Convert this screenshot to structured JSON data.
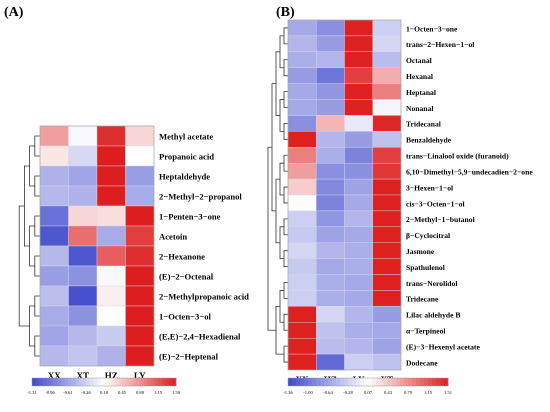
{
  "chart_data": [
    {
      "type": "heatmap",
      "panel_label": "(A)",
      "columns": [
        "XX",
        "XT",
        "HZ",
        "LY"
      ],
      "rows": [
        {
          "label": "Methyl acetate",
          "values": [
            0.7,
            0.05,
            1.4,
            0.35
          ]
        },
        {
          "label": "Propanoic acid",
          "values": [
            0.25,
            -0.2,
            1.5,
            0.1
          ]
        },
        {
          "label": "Heptaldehyde",
          "values": [
            -0.5,
            -0.6,
            1.5,
            -0.65
          ]
        },
        {
          "label": "2−Methyl−2−propanol",
          "values": [
            -0.45,
            -0.5,
            1.5,
            -0.55
          ]
        },
        {
          "label": "1−Penten−3−one",
          "values": [
            -1.0,
            0.35,
            0.3,
            1.5
          ]
        },
        {
          "label": "Acetoin",
          "values": [
            -1.2,
            1.0,
            -0.55,
            1.3
          ]
        },
        {
          "label": "2−Hexanone",
          "values": [
            -0.45,
            -1.2,
            1.1,
            1.4
          ]
        },
        {
          "label": "(E)−2−Octenal",
          "values": [
            -0.65,
            -0.75,
            0.05,
            1.5
          ]
        },
        {
          "label": "2−Methylpropanoic acid",
          "values": [
            -0.4,
            -1.25,
            0.2,
            1.5
          ]
        },
        {
          "label": "1−Octen−3−ol",
          "values": [
            -0.55,
            -0.75,
            0.1,
            1.5
          ]
        },
        {
          "label": "(E,E)−2,4−Hexadienal",
          "values": [
            -0.6,
            -0.45,
            -0.3,
            1.5
          ]
        },
        {
          "label": "(E)−2−Heptenal",
          "values": [
            -0.45,
            -0.35,
            -0.5,
            1.5
          ]
        }
      ],
      "scale": {
        "min": -1.31,
        "max": 1.5,
        "ticks": [
          "-1.31",
          "-0.96",
          "-0.61",
          "-0.26",
          "0.10",
          "0.45",
          "0.80",
          "1.15",
          "1.50"
        ]
      },
      "colors": {
        "low": "#3f48cc",
        "mid": "#ffffff",
        "high": "#dd1e1e"
      }
    },
    {
      "type": "heatmap",
      "panel_label": "(B)",
      "columns": [
        "XX",
        "HZ",
        "LY",
        "XT"
      ],
      "rows": [
        {
          "label": "1−Octen−3−one",
          "values": [
            -0.6,
            -0.8,
            1.5,
            -0.3
          ]
        },
        {
          "label": "trans−2−Hexen−1−ol",
          "values": [
            -0.5,
            -0.7,
            1.5,
            -0.25
          ]
        },
        {
          "label": "Octanal",
          "values": [
            -0.55,
            -0.5,
            1.5,
            -0.45
          ]
        },
        {
          "label": "Hexanal",
          "values": [
            -0.7,
            -1.0,
            1.3,
            0.6
          ]
        },
        {
          "label": "Heptanal",
          "values": [
            -0.6,
            -0.75,
            1.5,
            0.9
          ]
        },
        {
          "label": "Nonanal",
          "values": [
            -0.6,
            -0.7,
            1.5,
            0.0
          ]
        },
        {
          "label": "Tridecanal",
          "values": [
            -0.8,
            0.55,
            -0.1,
            1.45
          ]
        },
        {
          "label": "Benzaldehyde",
          "values": [
            1.5,
            -0.5,
            -0.7,
            -0.4
          ]
        },
        {
          "label": "trans−Linalool oxide (furanoid)",
          "values": [
            0.9,
            -0.55,
            -0.9,
            1.3
          ]
        },
        {
          "label": "6,10−Dimethyl−5,9−undecadien−2−one",
          "values": [
            0.7,
            -0.8,
            -0.8,
            1.35
          ]
        },
        {
          "label": "3−Hexen−1−ol",
          "values": [
            0.4,
            -0.85,
            -0.65,
            1.5
          ]
        },
        {
          "label": "cis−3−Octen−1−ol",
          "values": [
            0.1,
            -0.9,
            -0.6,
            1.5
          ]
        },
        {
          "label": "2−Methyl−1−butanol",
          "values": [
            -0.3,
            -0.75,
            -0.5,
            1.5
          ]
        },
        {
          "label": "β−Cyclocitral",
          "values": [
            -0.35,
            -0.65,
            -0.6,
            1.5
          ]
        },
        {
          "label": "Jasmone",
          "values": [
            -0.25,
            -0.5,
            -0.55,
            1.5
          ]
        },
        {
          "label": "Spathulenol",
          "values": [
            -0.35,
            -0.6,
            -0.55,
            1.5
          ]
        },
        {
          "label": "trans−Nerolidol",
          "values": [
            -0.3,
            -0.55,
            -0.6,
            1.5
          ]
        },
        {
          "label": "Tridecane",
          "values": [
            -0.3,
            -0.55,
            -0.6,
            1.5
          ]
        },
        {
          "label": "Lilac aldehyde B",
          "values": [
            1.5,
            -0.25,
            -0.5,
            -0.7
          ]
        },
        {
          "label": "α−Terpineol",
          "values": [
            1.5,
            -0.4,
            -0.55,
            -0.6
          ]
        },
        {
          "label": "(E)−3−Hexenyl acetate",
          "values": [
            1.5,
            -0.45,
            -0.5,
            -0.65
          ]
        },
        {
          "label": "Dodecane",
          "values": [
            1.5,
            -1.1,
            -0.3,
            -0.4
          ]
        }
      ],
      "scale": {
        "min": -1.36,
        "max": 1.51,
        "ticks": [
          "-1.36",
          "-1.00",
          "-0.64",
          "-0.28",
          "0.07",
          "0.43",
          "0.79",
          "1.15",
          "1.51"
        ]
      },
      "colors": {
        "low": "#3f48cc",
        "mid": "#ffffff",
        "high": "#dd1e1e"
      }
    }
  ]
}
